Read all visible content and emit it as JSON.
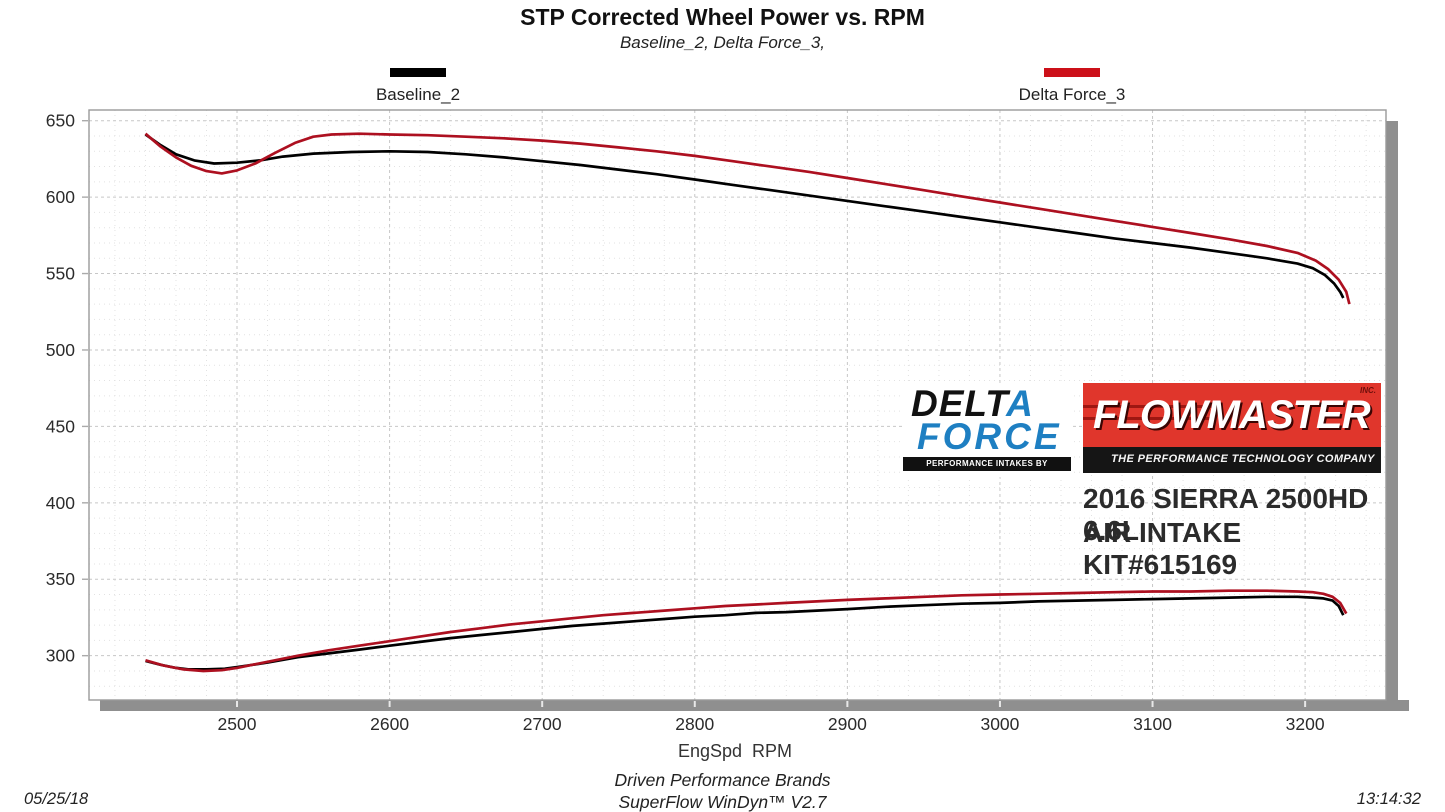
{
  "chart_data": {
    "type": "line",
    "title": "STP Corrected Wheel Power vs. RPM",
    "subtitle": "Baseline_2, Delta Force_3,",
    "xlabel": "EngSpd  RPM",
    "grid": true,
    "legend_position": "top",
    "xlim": [
      2403,
      3253
    ],
    "ylim": [
      271,
      657
    ],
    "x_ticks": [
      2500,
      2600,
      2700,
      2800,
      2900,
      3000,
      3100,
      3200
    ],
    "y_ticks": [
      300,
      350,
      400,
      450,
      500,
      550,
      600,
      650
    ],
    "x_minor_step": 20,
    "y_minor_step": 10,
    "legend": [
      {
        "label": "Baseline_2",
        "color": "#000000"
      },
      {
        "label": "Delta Force_3",
        "color": "#cc1019"
      }
    ],
    "series": [
      {
        "name": "Baseline_2 (upper curve)",
        "color": "#000000",
        "group": "upper",
        "points": [
          [
            2440,
            641
          ],
          [
            2450,
            634
          ],
          [
            2460,
            628
          ],
          [
            2472,
            624
          ],
          [
            2485,
            622
          ],
          [
            2500,
            622.5
          ],
          [
            2515,
            624
          ],
          [
            2530,
            626.5
          ],
          [
            2550,
            628.5
          ],
          [
            2575,
            629.5
          ],
          [
            2600,
            630
          ],
          [
            2625,
            629.5
          ],
          [
            2650,
            628
          ],
          [
            2675,
            626
          ],
          [
            2700,
            623.5
          ],
          [
            2725,
            621
          ],
          [
            2750,
            618
          ],
          [
            2775,
            615
          ],
          [
            2800,
            611.5
          ],
          [
            2825,
            608
          ],
          [
            2850,
            604.5
          ],
          [
            2875,
            601
          ],
          [
            2900,
            597.5
          ],
          [
            2925,
            594
          ],
          [
            2950,
            590.5
          ],
          [
            2975,
            587
          ],
          [
            3000,
            583.5
          ],
          [
            3025,
            580
          ],
          [
            3050,
            576.5
          ],
          [
            3075,
            573
          ],
          [
            3100,
            570
          ],
          [
            3125,
            567
          ],
          [
            3150,
            563.5
          ],
          [
            3175,
            560
          ],
          [
            3195,
            556.5
          ],
          [
            3205,
            553.5
          ],
          [
            3213,
            549
          ],
          [
            3219,
            543.5
          ],
          [
            3223,
            538
          ],
          [
            3225,
            534
          ]
        ]
      },
      {
        "name": "Delta Force_3 (upper curve)",
        "color": "#ad1020",
        "group": "upper",
        "points": [
          [
            2440,
            641.5
          ],
          [
            2450,
            633
          ],
          [
            2460,
            626
          ],
          [
            2470,
            620.5
          ],
          [
            2480,
            617
          ],
          [
            2490,
            615.5
          ],
          [
            2500,
            617.5
          ],
          [
            2512,
            622
          ],
          [
            2525,
            629
          ],
          [
            2538,
            635.5
          ],
          [
            2550,
            639.5
          ],
          [
            2562,
            641
          ],
          [
            2580,
            641.5
          ],
          [
            2600,
            641
          ],
          [
            2625,
            640.5
          ],
          [
            2650,
            639.5
          ],
          [
            2675,
            638.5
          ],
          [
            2700,
            637
          ],
          [
            2725,
            635
          ],
          [
            2750,
            632.5
          ],
          [
            2775,
            630
          ],
          [
            2800,
            627
          ],
          [
            2825,
            623.5
          ],
          [
            2850,
            620
          ],
          [
            2875,
            616.5
          ],
          [
            2900,
            612.5
          ],
          [
            2925,
            608.5
          ],
          [
            2950,
            604.5
          ],
          [
            2975,
            600.5
          ],
          [
            3000,
            596.5
          ],
          [
            3025,
            592.5
          ],
          [
            3050,
            588.5
          ],
          [
            3075,
            584.5
          ],
          [
            3100,
            580.5
          ],
          [
            3125,
            576.5
          ],
          [
            3150,
            572.5
          ],
          [
            3175,
            568
          ],
          [
            3195,
            563.5
          ],
          [
            3207,
            558.5
          ],
          [
            3215,
            553
          ],
          [
            3222,
            546
          ],
          [
            3227,
            538
          ],
          [
            3229,
            530
          ]
        ]
      },
      {
        "name": "Baseline_2 (lower curve)",
        "color": "#000000",
        "group": "lower",
        "points": [
          [
            2440,
            296.5
          ],
          [
            2450,
            294
          ],
          [
            2460,
            292
          ],
          [
            2468,
            291
          ],
          [
            2480,
            291
          ],
          [
            2492,
            291.5
          ],
          [
            2500,
            292.5
          ],
          [
            2520,
            295.5
          ],
          [
            2540,
            299
          ],
          [
            2560,
            301.5
          ],
          [
            2580,
            304
          ],
          [
            2600,
            306.5
          ],
          [
            2620,
            309
          ],
          [
            2640,
            311.5
          ],
          [
            2660,
            313.5
          ],
          [
            2680,
            315.5
          ],
          [
            2700,
            317.5
          ],
          [
            2720,
            319.5
          ],
          [
            2740,
            321
          ],
          [
            2760,
            322.5
          ],
          [
            2780,
            324
          ],
          [
            2800,
            325.5
          ],
          [
            2820,
            326.5
          ],
          [
            2840,
            328
          ],
          [
            2860,
            328.5
          ],
          [
            2880,
            329.5
          ],
          [
            2900,
            330.5
          ],
          [
            2925,
            332
          ],
          [
            2950,
            333
          ],
          [
            2975,
            334
          ],
          [
            3000,
            334.5
          ],
          [
            3025,
            335.5
          ],
          [
            3050,
            336
          ],
          [
            3075,
            336.5
          ],
          [
            3100,
            337
          ],
          [
            3125,
            337.5
          ],
          [
            3150,
            338
          ],
          [
            3175,
            338.5
          ],
          [
            3195,
            338.5
          ],
          [
            3205,
            338
          ],
          [
            3212,
            337.5
          ],
          [
            3218,
            336
          ],
          [
            3222,
            332.5
          ],
          [
            3225,
            326.5
          ]
        ]
      },
      {
        "name": "Delta Force_3 (lower curve)",
        "color": "#ad1020",
        "group": "lower",
        "points": [
          [
            2440,
            297
          ],
          [
            2452,
            293.5
          ],
          [
            2465,
            291
          ],
          [
            2478,
            290
          ],
          [
            2490,
            290.5
          ],
          [
            2500,
            292
          ],
          [
            2520,
            296
          ],
          [
            2540,
            300
          ],
          [
            2560,
            303.5
          ],
          [
            2580,
            306.5
          ],
          [
            2600,
            309.5
          ],
          [
            2620,
            312.5
          ],
          [
            2640,
            315.5
          ],
          [
            2660,
            318
          ],
          [
            2680,
            320.5
          ],
          [
            2700,
            322.5
          ],
          [
            2720,
            324.5
          ],
          [
            2740,
            326.5
          ],
          [
            2760,
            328
          ],
          [
            2780,
            329.5
          ],
          [
            2800,
            331
          ],
          [
            2820,
            332.5
          ],
          [
            2840,
            333.5
          ],
          [
            2860,
            334.5
          ],
          [
            2880,
            335.5
          ],
          [
            2900,
            336.5
          ],
          [
            2925,
            337.5
          ],
          [
            2950,
            338.5
          ],
          [
            2975,
            339.5
          ],
          [
            3000,
            340
          ],
          [
            3025,
            340.5
          ],
          [
            3050,
            341
          ],
          [
            3075,
            341.5
          ],
          [
            3100,
            342
          ],
          [
            3125,
            342
          ],
          [
            3150,
            342.5
          ],
          [
            3175,
            342.5
          ],
          [
            3195,
            342
          ],
          [
            3205,
            341.5
          ],
          [
            3212,
            340.5
          ],
          [
            3218,
            338.5
          ],
          [
            3223,
            334.5
          ],
          [
            3227,
            327.5
          ]
        ]
      }
    ]
  },
  "branding": {
    "deltaforce": {
      "word1_part1": "DELT",
      "word1_part2": "A",
      "word2": "FORCE",
      "tagline": "PERFORMANCE INTAKES BY FLOWMASTER",
      "blue": "#1e7fc2"
    },
    "flowmaster": {
      "word": "FLOWMASTER",
      "inc": "INC.",
      "tagline": "THE PERFORMANCE TECHNOLOGY COMPANY",
      "red": "#e0362c"
    },
    "vehicle_line_1": "2016 SIERRA 2500HD 6.6L",
    "vehicle_line_2": "AIR INTAKE KIT#615169"
  },
  "footer": {
    "brand": "Driven Performance Brands",
    "application": "SuperFlow WinDyn™ V2.7",
    "date": "05/25/18",
    "time": "13:14:32"
  }
}
